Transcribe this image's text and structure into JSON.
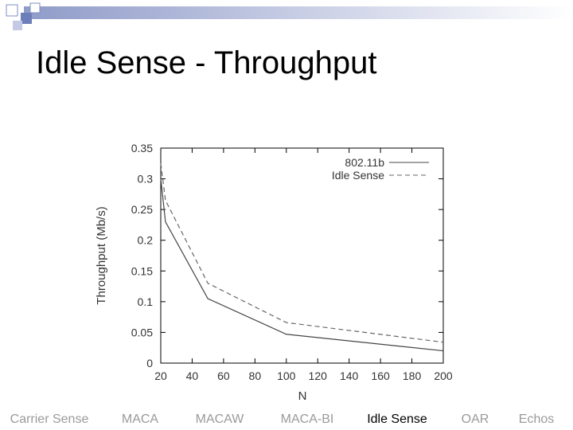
{
  "title": "Idle Sense - Throughput",
  "chart_data": {
    "type": "line",
    "x": [
      20,
      23,
      50,
      100,
      200
    ],
    "series": [
      {
        "name": "802.11b",
        "color": "#444444",
        "dash": "solid",
        "values": [
          0.3,
          0.23,
          0.105,
          0.047,
          0.02
        ]
      },
      {
        "name": "Idle Sense",
        "color": "#666666",
        "dash": "dashed",
        "values": [
          0.325,
          0.265,
          0.13,
          0.066,
          0.034
        ]
      }
    ],
    "x_label": "N",
    "y_label": "Throughput (Mb/s)",
    "xlim": [
      20,
      200
    ],
    "xticks": [
      20,
      40,
      60,
      80,
      100,
      120,
      140,
      160,
      180,
      200
    ],
    "ylim": [
      0,
      0.35
    ],
    "yticks": [
      0,
      0.05,
      0.1,
      0.15,
      0.2,
      0.25,
      0.3,
      0.35
    ],
    "legend": "upper right",
    "grid": false
  },
  "nav": [
    "Carrier Sense",
    "MACA",
    "MACAW",
    "MACA-BI",
    "Idle Sense",
    "OAR",
    "Echos"
  ],
  "nav_current": 4
}
